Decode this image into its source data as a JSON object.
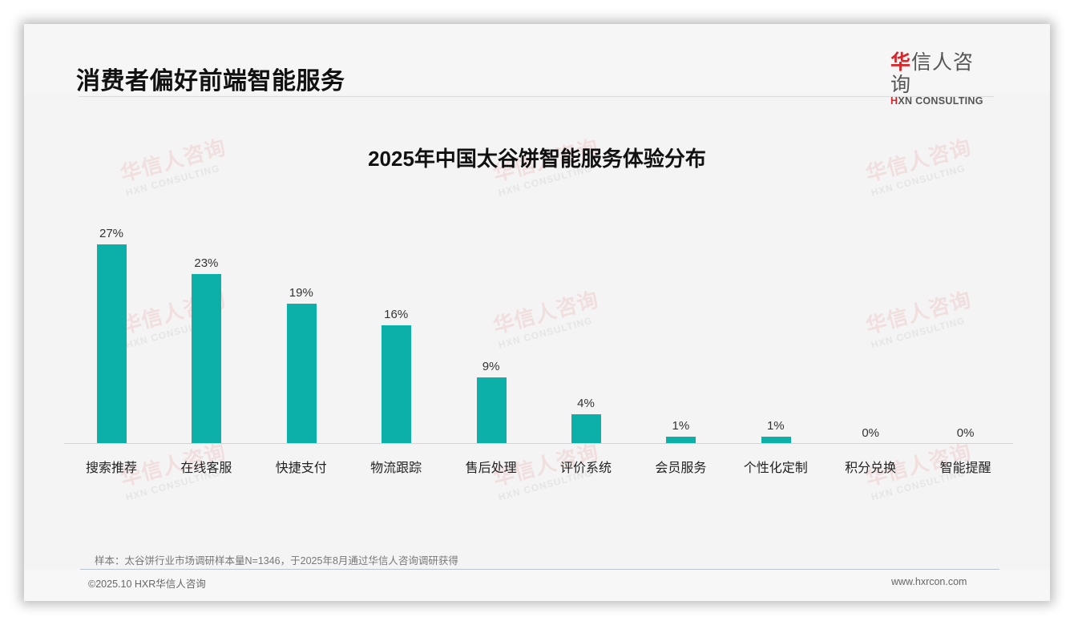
{
  "page": {
    "title": "消费者偏好前端智能服务",
    "logo": {
      "cn_first": "华",
      "cn_rest": "信人咨询",
      "en_first": "H",
      "en_rest": "XN CONSULTING"
    },
    "watermark": {
      "cn": "华信人咨询",
      "en": "HXN CONSULTING"
    },
    "note": "样本：太谷饼行业市场调研样本量N=1346，于2025年8月通过华信人咨询调研获得",
    "copyright": "©2025.10 HXR华信人咨询",
    "website": "www.hxrcon.com",
    "colors": {
      "bar": "#0cb0a8",
      "brand_red": "#d7262b",
      "text": "#111111"
    }
  },
  "chart_data": {
    "type": "bar",
    "title": "2025年中国太谷饼智能服务体验分布",
    "xlabel": "",
    "ylabel": "",
    "categories": [
      "搜索推荐",
      "在线客服",
      "快捷支付",
      "物流跟踪",
      "售后处理",
      "评价系统",
      "会员服务",
      "个性化定制",
      "积分兑换",
      "智能提醒"
    ],
    "values": [
      27,
      23,
      19,
      16,
      9,
      4,
      1,
      1,
      0,
      0
    ],
    "value_labels": [
      "27%",
      "23%",
      "19%",
      "16%",
      "9%",
      "4%",
      "1%",
      "1%",
      "0%",
      "0%"
    ],
    "unit": "%",
    "ylim": [
      0,
      30
    ],
    "grid": false,
    "legend": "none"
  }
}
